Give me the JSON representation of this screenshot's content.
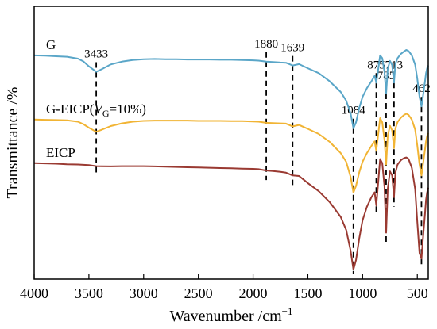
{
  "chart_data": {
    "type": "line",
    "xlabel": "Wavenumber /cm",
    "xlabel_sup": "−1",
    "ylabel": "Transmittance /%",
    "xlim": [
      4000,
      400
    ],
    "x_reversed": true,
    "xticks": [
      4000,
      3500,
      3000,
      2500,
      2000,
      1500,
      1000,
      500
    ],
    "ylim": [
      0,
      1
    ],
    "y_tick_labels": false,
    "grid": false,
    "peak_marks": [
      {
        "label": "3433",
        "x": 3433
      },
      {
        "label": "1880",
        "x": 1880
      },
      {
        "label": "1639",
        "x": 1639
      },
      {
        "label": "1084",
        "x": 1084
      },
      {
        "label": "875",
        "x": 875
      },
      {
        "label": "785",
        "x": 785
      },
      {
        "label": "713",
        "x": 713
      },
      {
        "label": "462",
        "x": 462
      }
    ],
    "series": [
      {
        "name": "G",
        "label_prefix": "G",
        "label_italic": "",
        "label_sub": "",
        "label_suffix": "",
        "color": "#5aa6c8",
        "points": [
          [
            4000,
            0.82
          ],
          [
            3900,
            0.819
          ],
          [
            3800,
            0.817
          ],
          [
            3700,
            0.815
          ],
          [
            3600,
            0.808
          ],
          [
            3550,
            0.798
          ],
          [
            3500,
            0.78
          ],
          [
            3433,
            0.76
          ],
          [
            3380,
            0.77
          ],
          [
            3300,
            0.787
          ],
          [
            3200,
            0.797
          ],
          [
            3100,
            0.803
          ],
          [
            3000,
            0.806
          ],
          [
            2900,
            0.807
          ],
          [
            2800,
            0.806
          ],
          [
            2700,
            0.806
          ],
          [
            2600,
            0.805
          ],
          [
            2500,
            0.805
          ],
          [
            2400,
            0.805
          ],
          [
            2300,
            0.804
          ],
          [
            2200,
            0.804
          ],
          [
            2100,
            0.803
          ],
          [
            2000,
            0.802
          ],
          [
            1950,
            0.801
          ],
          [
            1880,
            0.797
          ],
          [
            1820,
            0.796
          ],
          [
            1750,
            0.794
          ],
          [
            1700,
            0.793
          ],
          [
            1639,
            0.783
          ],
          [
            1580,
            0.788
          ],
          [
            1500,
            0.773
          ],
          [
            1400,
            0.755
          ],
          [
            1300,
            0.725
          ],
          [
            1200,
            0.686
          ],
          [
            1150,
            0.654
          ],
          [
            1110,
            0.608
          ],
          [
            1084,
            0.553
          ],
          [
            1060,
            0.575
          ],
          [
            1030,
            0.628
          ],
          [
            1000,
            0.668
          ],
          [
            960,
            0.7
          ],
          [
            920,
            0.725
          ],
          [
            890,
            0.745
          ],
          [
            875,
            0.72
          ],
          [
            860,
            0.76
          ],
          [
            840,
            0.82
          ],
          [
            820,
            0.81
          ],
          [
            800,
            0.76
          ],
          [
            785,
            0.68
          ],
          [
            770,
            0.77
          ],
          [
            750,
            0.8
          ],
          [
            730,
            0.785
          ],
          [
            713,
            0.72
          ],
          [
            700,
            0.79
          ],
          [
            680,
            0.81
          ],
          [
            650,
            0.826
          ],
          [
            620,
            0.835
          ],
          [
            600,
            0.84
          ],
          [
            580,
            0.836
          ],
          [
            550,
            0.82
          ],
          [
            520,
            0.786
          ],
          [
            500,
            0.735
          ],
          [
            480,
            0.668
          ],
          [
            462,
            0.633
          ],
          [
            450,
            0.665
          ],
          [
            430,
            0.725
          ],
          [
            420,
            0.755
          ],
          [
            410,
            0.773
          ],
          [
            400,
            0.783
          ]
        ]
      },
      {
        "name": "G-EICP(VG=10%)",
        "label_prefix": "G-EICP(",
        "label_italic": "V",
        "label_sub": "G",
        "label_suffix": "=10%)",
        "color": "#f1b434",
        "points": [
          [
            4000,
            0.585
          ],
          [
            3900,
            0.584
          ],
          [
            3800,
            0.583
          ],
          [
            3700,
            0.582
          ],
          [
            3600,
            0.577
          ],
          [
            3550,
            0.568
          ],
          [
            3500,
            0.555
          ],
          [
            3433,
            0.54
          ],
          [
            3380,
            0.548
          ],
          [
            3300,
            0.561
          ],
          [
            3200,
            0.571
          ],
          [
            3100,
            0.577
          ],
          [
            3000,
            0.58
          ],
          [
            2900,
            0.581
          ],
          [
            2800,
            0.581
          ],
          [
            2700,
            0.581
          ],
          [
            2600,
            0.581
          ],
          [
            2500,
            0.58
          ],
          [
            2400,
            0.58
          ],
          [
            2300,
            0.58
          ],
          [
            2200,
            0.579
          ],
          [
            2100,
            0.579
          ],
          [
            2000,
            0.578
          ],
          [
            1950,
            0.577
          ],
          [
            1880,
            0.573
          ],
          [
            1820,
            0.572
          ],
          [
            1750,
            0.571
          ],
          [
            1700,
            0.57
          ],
          [
            1639,
            0.56
          ],
          [
            1580,
            0.565
          ],
          [
            1500,
            0.551
          ],
          [
            1400,
            0.532
          ],
          [
            1300,
            0.503
          ],
          [
            1200,
            0.462
          ],
          [
            1150,
            0.43
          ],
          [
            1110,
            0.375
          ],
          [
            1084,
            0.317
          ],
          [
            1060,
            0.342
          ],
          [
            1030,
            0.392
          ],
          [
            1000,
            0.43
          ],
          [
            960,
            0.462
          ],
          [
            920,
            0.488
          ],
          [
            890,
            0.505
          ],
          [
            875,
            0.47
          ],
          [
            860,
            0.52
          ],
          [
            840,
            0.59
          ],
          [
            820,
            0.575
          ],
          [
            800,
            0.51
          ],
          [
            785,
            0.42
          ],
          [
            770,
            0.525
          ],
          [
            750,
            0.562
          ],
          [
            730,
            0.545
          ],
          [
            713,
            0.48
          ],
          [
            700,
            0.552
          ],
          [
            680,
            0.576
          ],
          [
            650,
            0.592
          ],
          [
            620,
            0.602
          ],
          [
            600,
            0.606
          ],
          [
            580,
            0.602
          ],
          [
            550,
            0.585
          ],
          [
            520,
            0.548
          ],
          [
            500,
            0.49
          ],
          [
            480,
            0.42
          ],
          [
            462,
            0.38
          ],
          [
            450,
            0.415
          ],
          [
            430,
            0.475
          ],
          [
            420,
            0.505
          ],
          [
            410,
            0.525
          ],
          [
            400,
            0.535
          ]
        ]
      },
      {
        "name": "EICP",
        "label_prefix": "EICP",
        "label_italic": "",
        "label_sub": "",
        "label_suffix": "",
        "color": "#9a3a32",
        "points": [
          [
            4000,
            0.425
          ],
          [
            3900,
            0.424
          ],
          [
            3800,
            0.423
          ],
          [
            3700,
            0.421
          ],
          [
            3600,
            0.42
          ],
          [
            3500,
            0.418
          ],
          [
            3433,
            0.414
          ],
          [
            3300,
            0.413
          ],
          [
            3200,
            0.414
          ],
          [
            3100,
            0.414
          ],
          [
            3000,
            0.414
          ],
          [
            2900,
            0.413
          ],
          [
            2800,
            0.412
          ],
          [
            2700,
            0.411
          ],
          [
            2600,
            0.41
          ],
          [
            2500,
            0.409
          ],
          [
            2400,
            0.408
          ],
          [
            2300,
            0.407
          ],
          [
            2200,
            0.406
          ],
          [
            2100,
            0.405
          ],
          [
            2000,
            0.404
          ],
          [
            1950,
            0.403
          ],
          [
            1880,
            0.398
          ],
          [
            1820,
            0.396
          ],
          [
            1750,
            0.393
          ],
          [
            1700,
            0.39
          ],
          [
            1639,
            0.38
          ],
          [
            1580,
            0.378
          ],
          [
            1500,
            0.352
          ],
          [
            1400,
            0.322
          ],
          [
            1300,
            0.282
          ],
          [
            1200,
            0.228
          ],
          [
            1150,
            0.18
          ],
          [
            1110,
            0.105
          ],
          [
            1084,
            0.035
          ],
          [
            1060,
            0.07
          ],
          [
            1030,
            0.15
          ],
          [
            1000,
            0.215
          ],
          [
            960,
            0.265
          ],
          [
            920,
            0.3
          ],
          [
            890,
            0.318
          ],
          [
            875,
            0.27
          ],
          [
            860,
            0.34
          ],
          [
            840,
            0.44
          ],
          [
            820,
            0.425
          ],
          [
            800,
            0.34
          ],
          [
            785,
            0.17
          ],
          [
            770,
            0.33
          ],
          [
            750,
            0.395
          ],
          [
            730,
            0.38
          ],
          [
            713,
            0.3
          ],
          [
            700,
            0.39
          ],
          [
            680,
            0.42
          ],
          [
            650,
            0.436
          ],
          [
            620,
            0.444
          ],
          [
            600,
            0.446
          ],
          [
            580,
            0.44
          ],
          [
            550,
            0.408
          ],
          [
            520,
            0.33
          ],
          [
            500,
            0.21
          ],
          [
            480,
            0.095
          ],
          [
            462,
            0.075
          ],
          [
            450,
            0.14
          ],
          [
            430,
            0.24
          ],
          [
            420,
            0.29
          ],
          [
            410,
            0.318
          ],
          [
            400,
            0.335
          ]
        ]
      }
    ]
  }
}
